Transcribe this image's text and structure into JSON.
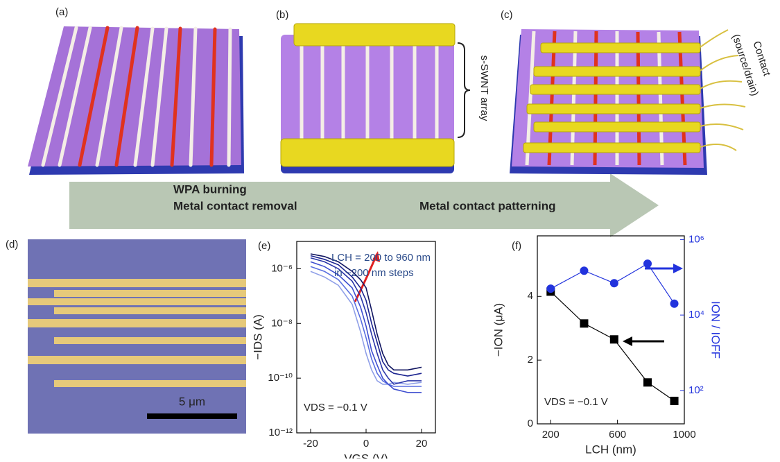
{
  "panel_labels": [
    "(a)",
    "(b)",
    "(c)",
    "(d)",
    "(e)",
    "(f)"
  ],
  "illustration": {
    "array_label": "s-SWNT array",
    "contact_label": [
      "Contact",
      "(source/drain)"
    ],
    "step1": [
      "WPA burning",
      "Metal contact removal"
    ],
    "step2": "Metal contact  patterning",
    "scale_bar": "5 μm"
  },
  "chart_data": [
    {
      "type": "line",
      "xlabel": "VGS (V)",
      "ylabel": "−IDS (A)",
      "annotations": [
        "LCH = 200 to 960 nm",
        "in ~200 nm steps",
        "VDS = −0.1 V"
      ],
      "x": [
        -20,
        -15,
        -10,
        -5,
        -2,
        0,
        2,
        4,
        6,
        8,
        10,
        15,
        20
      ],
      "xlim": [
        -25,
        25
      ],
      "xticks": [
        -20,
        0,
        20
      ],
      "ylim": [
        1e-12,
        1e-05
      ],
      "ylog": true,
      "yticks": [
        {
          "value": 1e-12,
          "label": "10⁻¹²"
        },
        {
          "value": 1e-10,
          "label": "10⁻¹⁰"
        },
        {
          "value": 1e-08,
          "label": "10⁻⁸"
        },
        {
          "value": 1e-06,
          "label": "10⁻⁶"
        }
      ],
      "series": [
        {
          "color": "#8f9fe8",
          "values": [
            8e-07,
            5e-07,
            2.5e-07,
            5e-08,
            5e-09,
            8e-10,
            2e-10,
            8e-11,
            6e-11,
            6e-11,
            7e-11,
            6e-11,
            7e-11
          ]
        },
        {
          "color": "#5a6fe0",
          "values": [
            1.2e-06,
            8e-07,
            4e-07,
            1e-07,
            1.5e-08,
            3e-09,
            5e-10,
            1.5e-10,
            8e-11,
            6e-11,
            5e-11,
            5e-11,
            5e-11
          ]
        },
        {
          "color": "#3f4fd0",
          "values": [
            1.8e-06,
            1.2e-06,
            6e-07,
            2e-07,
            4e-08,
            8e-09,
            1e-09,
            3e-10,
            1e-10,
            6e-11,
            4e-11,
            3e-11,
            3e-11
          ]
        },
        {
          "color": "#2a35a8",
          "values": [
            2.5e-06,
            1.8e-06,
            1e-06,
            3.5e-07,
            1e-07,
            2.5e-08,
            4e-09,
            8e-10,
            2e-10,
            1e-10,
            6e-11,
            8e-11,
            8e-11
          ]
        },
        {
          "color": "#1c2490",
          "values": [
            3e-06,
            2.2e-06,
            1.4e-06,
            5e-07,
            2e-07,
            7e-08,
            1e-08,
            2e-09,
            4e-10,
            2e-10,
            1.5e-10,
            1.2e-10,
            1.5e-10
          ]
        },
        {
          "color": "#101560",
          "values": [
            3.5e-06,
            2.8e-06,
            1.8e-06,
            8e-07,
            4e-07,
            2e-07,
            3e-08,
            4e-09,
            8e-10,
            3e-10,
            2e-10,
            2e-10,
            2.5e-10
          ]
        }
      ]
    },
    {
      "type": "line",
      "xlabel": "LCH (nm)",
      "ylabel": "−ION (μA)",
      "y2label": "ION / IOFF",
      "annotations": [
        "VDS = −0.1 V"
      ],
      "x": [
        200,
        400,
        580,
        780,
        940
      ],
      "xlim": [
        120,
        1000
      ],
      "xticks": [
        200,
        600,
        1000
      ],
      "ylim": [
        0,
        5.9
      ],
      "yticks": [
        0,
        2,
        4
      ],
      "y2lim": [
        13,
        1260000
      ],
      "y2log": true,
      "y2ticks": [
        {
          "value": 100,
          "label": "10²"
        },
        {
          "value": 10000,
          "label": "10⁴"
        },
        {
          "value": 1000000,
          "label": "10⁶"
        }
      ],
      "series": [
        {
          "color": "#000000",
          "marker": "square",
          "values": [
            4.15,
            3.15,
            2.65,
            1.3,
            0.72
          ]
        },
        {
          "color": "#2233dd",
          "marker": "circle",
          "axis": "y2",
          "values": [
            50000,
            150000,
            70000,
            230000,
            20000
          ]
        }
      ]
    }
  ]
}
